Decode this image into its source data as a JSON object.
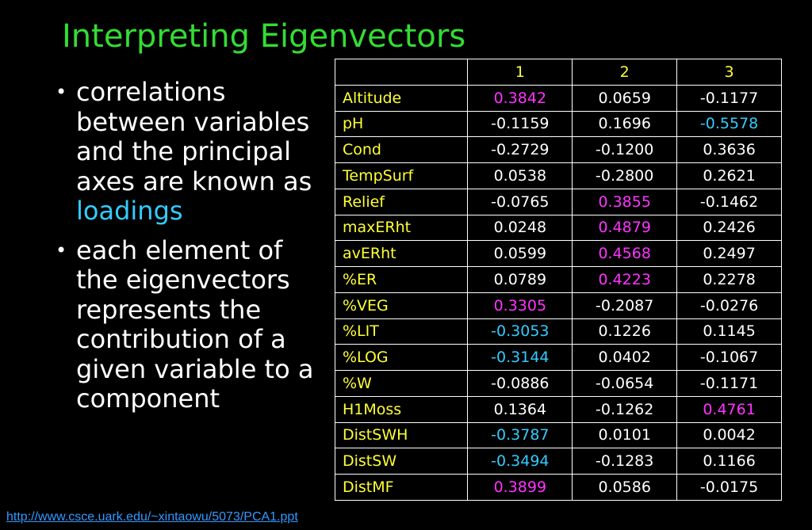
{
  "title": "Interpreting Eigenvectors",
  "bullets": [
    {
      "before": "correlations between variables and the principal axes are known as ",
      "highlight": "loadings",
      "after": ""
    },
    {
      "before": "each element of the eigenvectors represents the contribution of a given variable to a component",
      "highlight": "",
      "after": ""
    }
  ],
  "colors": {
    "title": "#33dd33",
    "variable": "#ffff33",
    "positive_highlight": "#ff33ff",
    "negative_highlight": "#33ccff",
    "normal": "#ffffff",
    "link": "#3399ff"
  },
  "table": {
    "headers": [
      "",
      "1",
      "2",
      "3"
    ],
    "rows": [
      {
        "name": "Altitude",
        "values": [
          "0.3842",
          "0.0659",
          "-0.1177"
        ],
        "highlights": [
          "pos",
          "",
          ""
        ]
      },
      {
        "name": "pH",
        "values": [
          "-0.1159",
          "0.1696",
          "-0.5578"
        ],
        "highlights": [
          "",
          "",
          "neg"
        ]
      },
      {
        "name": "Cond",
        "values": [
          "-0.2729",
          "-0.1200",
          "0.3636"
        ],
        "highlights": [
          "",
          "",
          ""
        ]
      },
      {
        "name": "TempSurf",
        "values": [
          "0.0538",
          "-0.2800",
          "0.2621"
        ],
        "highlights": [
          "",
          "",
          ""
        ]
      },
      {
        "name": "Relief",
        "values": [
          "-0.0765",
          "0.3855",
          "-0.1462"
        ],
        "highlights": [
          "",
          "pos",
          ""
        ]
      },
      {
        "name": "maxERht",
        "values": [
          "0.0248",
          "0.4879",
          "0.2426"
        ],
        "highlights": [
          "",
          "pos",
          ""
        ]
      },
      {
        "name": "avERht",
        "values": [
          "0.0599",
          "0.4568",
          "0.2497"
        ],
        "highlights": [
          "",
          "pos",
          ""
        ]
      },
      {
        "name": "%ER",
        "values": [
          "0.0789",
          "0.4223",
          "0.2278"
        ],
        "highlights": [
          "",
          "pos",
          ""
        ]
      },
      {
        "name": "%VEG",
        "values": [
          "0.3305",
          "-0.2087",
          "-0.0276"
        ],
        "highlights": [
          "pos",
          "",
          ""
        ]
      },
      {
        "name": "%LIT",
        "values": [
          "-0.3053",
          "0.1226",
          "0.1145"
        ],
        "highlights": [
          "neg",
          "",
          ""
        ]
      },
      {
        "name": "%LOG",
        "values": [
          "-0.3144",
          "0.0402",
          "-0.1067"
        ],
        "highlights": [
          "neg",
          "",
          ""
        ]
      },
      {
        "name": "%W",
        "values": [
          "-0.0886",
          "-0.0654",
          "-0.1171"
        ],
        "highlights": [
          "",
          "",
          ""
        ]
      },
      {
        "name": "H1Moss",
        "values": [
          "0.1364",
          "-0.1262",
          "0.4761"
        ],
        "highlights": [
          "",
          "",
          "pos"
        ]
      },
      {
        "name": "DistSWH",
        "values": [
          "-0.3787",
          "0.0101",
          "0.0042"
        ],
        "highlights": [
          "neg",
          "",
          ""
        ]
      },
      {
        "name": "DistSW",
        "values": [
          "-0.3494",
          "-0.1283",
          "0.1166"
        ],
        "highlights": [
          "neg",
          "",
          ""
        ]
      },
      {
        "name": "DistMF",
        "values": [
          "0.3899",
          "0.0586",
          "-0.0175"
        ],
        "highlights": [
          "pos",
          "",
          ""
        ]
      }
    ]
  },
  "footer": {
    "link_text": "http://www.csce.uark.edu/~xintaowu/5073/PCA1.ppt"
  }
}
